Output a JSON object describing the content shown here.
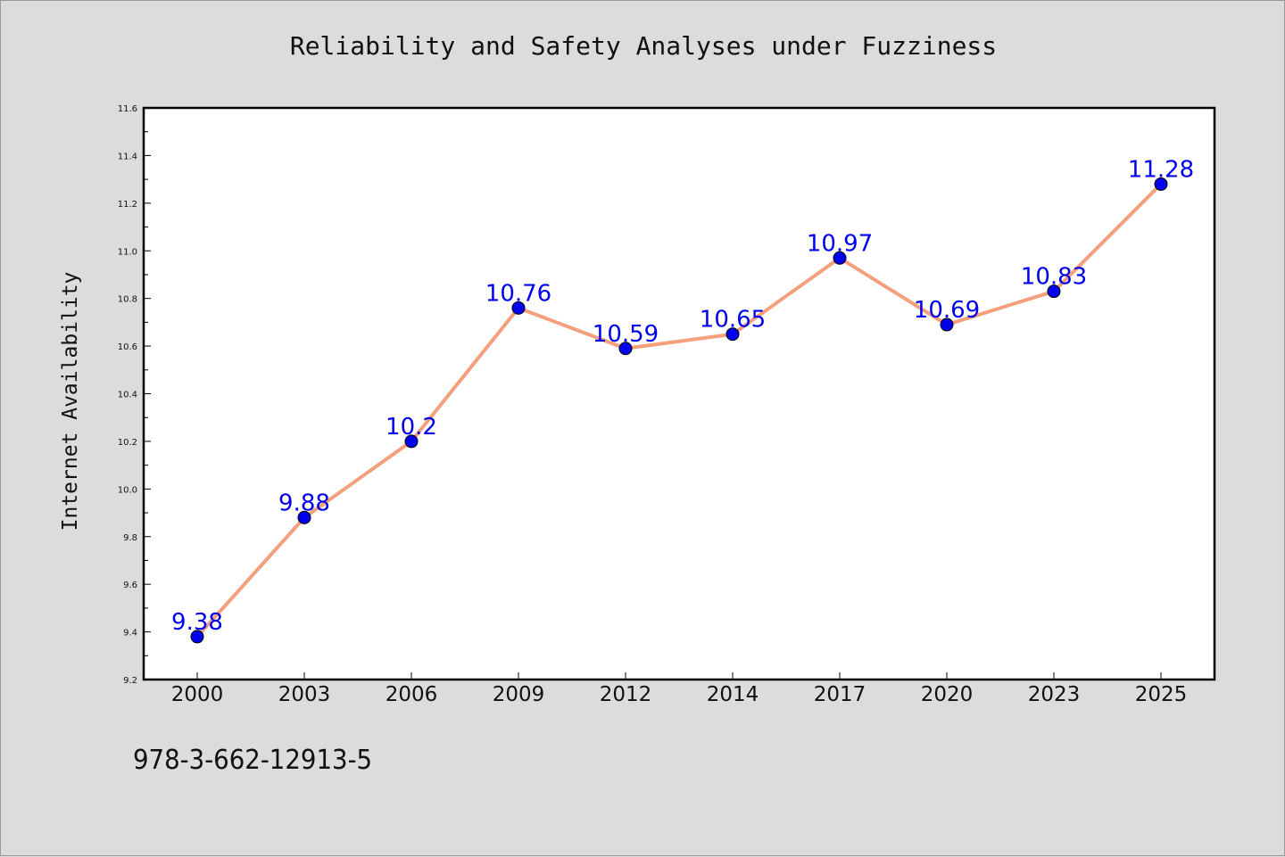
{
  "chart_data": {
    "type": "line",
    "title": "Reliability and Safety Analyses under Fuzziness",
    "xlabel": "",
    "ylabel": "Internet Availability",
    "categories": [
      "2000",
      "2003",
      "2006",
      "2009",
      "2012",
      "2014",
      "2017",
      "2020",
      "2023",
      "2025"
    ],
    "series": [
      {
        "values": [
          9.38,
          9.88,
          10.2,
          10.76,
          10.59,
          10.65,
          10.97,
          10.69,
          10.83,
          11.28
        ],
        "labels": [
          "9.38",
          "9.88",
          "10.2",
          "10.76",
          "10.59",
          "10.65",
          "10.97",
          "10.69",
          "10.83",
          "11.28"
        ],
        "line_color": "#f4a07c",
        "marker_color": "#0000ee",
        "label_color": "#0000ee"
      }
    ],
    "ylim": [
      9.2,
      11.6
    ],
    "yticks": [
      "9.2",
      "9.4",
      "9.6",
      "9.8",
      "10.0",
      "10.2",
      "10.4",
      "10.6",
      "10.8",
      "11.0",
      "11.2",
      "11.4",
      "11.6"
    ],
    "grid": false,
    "legend": "none"
  },
  "footer": {
    "text": "978-3-662-12913-5"
  },
  "colors": {
    "background": "#dcdcdc",
    "plot_background": "#ffffff"
  }
}
